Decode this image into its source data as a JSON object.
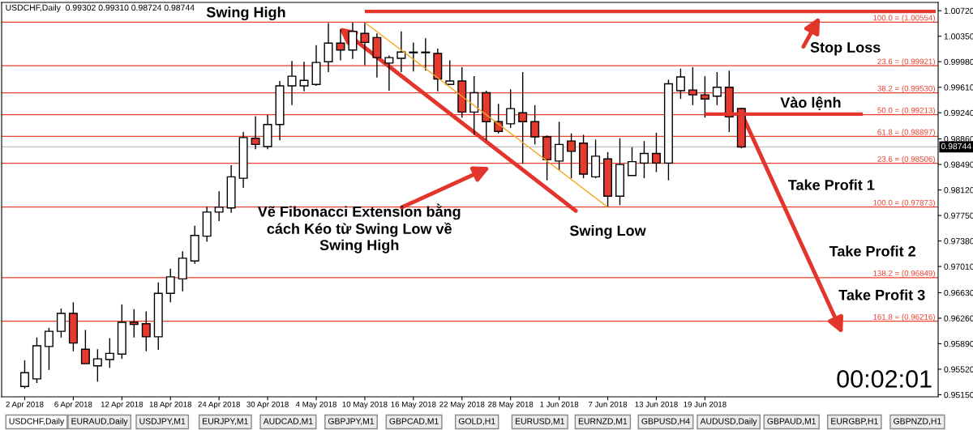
{
  "chart_data": {
    "type": "candlestick",
    "title": "USDCHF,Daily  0.99302 0.99310 0.98724 0.98744",
    "categories": [
      "2 Apr 2018",
      null,
      null,
      null,
      "6 Apr 2018",
      null,
      null,
      null,
      "12 Apr 2018",
      null,
      null,
      null,
      "18 Apr 2018",
      null,
      null,
      null,
      "24 Apr 2018",
      null,
      null,
      null,
      "30 Apr 2018",
      null,
      null,
      null,
      "4 May 2018",
      null,
      null,
      null,
      "10 May 2018",
      null,
      null,
      null,
      "16 May 2018",
      null,
      null,
      null,
      "22 May 2018",
      null,
      null,
      null,
      "28 May 2018",
      null,
      null,
      null,
      "1 Jun 2018",
      null,
      null,
      null,
      "7 Jun 2018",
      null,
      null,
      null,
      "13 Jun 2018",
      null,
      null,
      null,
      "19 Jun 2018",
      null,
      null,
      null,
      null,
      null,
      null,
      null,
      null,
      null,
      null,
      null,
      null,
      null,
      null,
      null,
      null,
      null,
      null,
      null
    ],
    "ohlc": [
      [
        0.9527,
        0.9565,
        0.9524,
        0.9547
      ],
      [
        0.9538,
        0.9598,
        0.9532,
        0.9586
      ],
      [
        0.9585,
        0.9612,
        0.9551,
        0.9607
      ],
      [
        0.9607,
        0.964,
        0.9598,
        0.9633
      ],
      [
        0.9633,
        0.9649,
        0.9578,
        0.959
      ],
      [
        0.9581,
        0.9609,
        0.956,
        0.956
      ],
      [
        0.9557,
        0.9581,
        0.9534,
        0.9567
      ],
      [
        0.9566,
        0.9597,
        0.9554,
        0.9575
      ],
      [
        0.9574,
        0.9646,
        0.9567,
        0.962
      ],
      [
        0.962,
        0.9639,
        0.9598,
        0.9617
      ],
      [
        0.9618,
        0.9636,
        0.9578,
        0.9599
      ],
      [
        0.9599,
        0.9678,
        0.958,
        0.9662
      ],
      [
        0.9662,
        0.9698,
        0.9649,
        0.9686
      ],
      [
        0.9683,
        0.9723,
        0.9665,
        0.9713
      ],
      [
        0.9709,
        0.976,
        0.9705,
        0.9746
      ],
      [
        0.9745,
        0.9788,
        0.9737,
        0.978
      ],
      [
        0.978,
        0.981,
        0.9767,
        0.9787
      ],
      [
        0.9786,
        0.9848,
        0.9779,
        0.9831
      ],
      [
        0.9829,
        0.9896,
        0.9815,
        0.9888
      ],
      [
        0.9887,
        0.9919,
        0.9871,
        0.9878
      ],
      [
        0.9875,
        0.9921,
        0.9871,
        0.9907
      ],
      [
        0.9907,
        0.997,
        0.9884,
        0.9963
      ],
      [
        0.9963,
        0.9999,
        0.9935,
        0.9977
      ],
      [
        0.9963,
        0.9998,
        0.9955,
        0.9971
      ],
      [
        0.9965,
        1.0022,
        0.9963,
        0.9997
      ],
      [
        0.9998,
        1.0054,
        0.9983,
        1.0025
      ],
      [
        1.0025,
        1.0045,
        1.0,
        1.0015
      ],
      [
        1.0015,
        1.0055,
        1.0002,
        1.0042
      ],
      [
        1.0039,
        1.0055,
        0.9993,
        1.0026
      ],
      [
        1.0033,
        1.0039,
        0.9975,
        1.0004
      ],
      [
        0.9996,
        1.0007,
        0.9956,
        1.0004
      ],
      [
        1.0003,
        1.0042,
        0.9983,
        1.0012
      ],
      [
        1.0011,
        1.0026,
        0.9984,
        1.0012
      ],
      [
        1.0011,
        1.0032,
        0.9985,
        1.0012
      ],
      [
        1.001,
        1.0017,
        0.9955,
        0.9973
      ],
      [
        0.9965,
        1.0,
        0.9965,
        0.997
      ],
      [
        0.997,
        0.999,
        0.9917,
        0.9925
      ],
      [
        0.9925,
        0.9977,
        0.9892,
        0.9953
      ],
      [
        0.9953,
        0.9956,
        0.9884,
        0.9911
      ],
      [
        0.9911,
        0.9937,
        0.9894,
        0.9897
      ],
      [
        0.9908,
        0.9958,
        0.9902,
        0.993
      ],
      [
        0.9924,
        0.9983,
        0.985,
        0.9911
      ],
      [
        0.9911,
        0.9935,
        0.9878,
        0.9889
      ],
      [
        0.9889,
        0.9891,
        0.9826,
        0.9856
      ],
      [
        0.9854,
        0.9911,
        0.9841,
        0.9878
      ],
      [
        0.9883,
        0.9894,
        0.9829,
        0.9868
      ],
      [
        0.988,
        0.9892,
        0.9829,
        0.9835
      ],
      [
        0.9831,
        0.9885,
        0.9829,
        0.9861
      ],
      [
        0.9857,
        0.9867,
        0.9787,
        0.9803
      ],
      [
        0.9803,
        0.9887,
        0.979,
        0.9849
      ],
      [
        0.9833,
        0.9874,
        0.9833,
        0.9853
      ],
      [
        0.9851,
        0.9883,
        0.9829,
        0.9865
      ],
      [
        0.9865,
        0.9895,
        0.9838,
        0.9851
      ],
      [
        0.9851,
        0.9972,
        0.9826,
        0.9966
      ],
      [
        0.9956,
        0.9988,
        0.9944,
        0.9976
      ],
      [
        0.9957,
        0.999,
        0.9935,
        0.995
      ],
      [
        0.995,
        0.9977,
        0.9917,
        0.9944
      ],
      [
        0.9948,
        0.9983,
        0.9935,
        0.9961
      ],
      [
        0.9961,
        0.9985,
        0.9896,
        0.9918
      ],
      [
        0.99302,
        0.9931,
        0.98724,
        0.98744
      ],
      null,
      null,
      null,
      null,
      null,
      null,
      null,
      null,
      null,
      null,
      null,
      null,
      null,
      null,
      null,
      null
    ],
    "colors": [
      "#ffffff",
      "#ffffff",
      "#ffffff",
      "#ffffff",
      "#e53a2f",
      "#e53a2f",
      "#ffffff",
      "#ffffff",
      "#ffffff",
      "#e53a2f",
      "#e53a2f",
      "#ffffff",
      "#ffffff",
      "#ffffff",
      "#ffffff",
      "#ffffff",
      "#ffffff",
      "#ffffff",
      "#ffffff",
      "#e53a2f",
      "#ffffff",
      "#ffffff",
      "#ffffff",
      "#ffffff",
      "#ffffff",
      "#ffffff",
      "#e53a2f",
      "#ffffff",
      "#e53a2f",
      "#e53a2f",
      "#ffffff",
      "#ffffff",
      "#ffffff",
      "#ffffff",
      "#e53a2f",
      "#ffffff",
      "#e53a2f",
      "#ffffff",
      "#e53a2f",
      "#e53a2f",
      "#ffffff",
      "#e53a2f",
      "#e53a2f",
      "#e53a2f",
      "#ffffff",
      "#e53a2f",
      "#e53a2f",
      "#ffffff",
      "#e53a2f",
      "#ffffff",
      "#ffffff",
      "#ffffff",
      "#e53a2f",
      "#ffffff",
      "#ffffff",
      "#e53a2f",
      "#e53a2f",
      "#ffffff",
      "#e53a2f",
      "#e53a2f",
      null,
      null,
      null,
      null,
      null,
      null,
      null,
      null,
      null,
      null,
      null,
      null,
      null,
      null,
      null,
      null
    ],
    "series": [
      {
        "type": "line",
        "color": "#f5a623",
        "values": [
          null,
          null,
          null,
          null,
          null,
          null,
          null,
          null,
          null,
          null,
          null,
          null,
          null,
          null,
          null,
          null,
          null,
          null,
          null,
          null,
          null,
          null,
          null,
          null,
          null,
          null,
          null,
          null,
          1.0055,
          null,
          null,
          null,
          null,
          null,
          null,
          null,
          null,
          null,
          null,
          null,
          null,
          null,
          null,
          null,
          null,
          null,
          null,
          null,
          0.9787,
          null,
          null,
          null,
          null,
          null,
          null,
          null,
          null,
          null,
          null,
          null,
          null,
          null,
          null,
          null,
          null,
          null,
          null,
          null,
          null,
          null,
          null,
          null,
          null,
          null,
          null,
          null
        ]
      },
      {
        "type": "line",
        "color": "#e3352b",
        "values": [
          null,
          null,
          null,
          null,
          null,
          null,
          null,
          null,
          null,
          null,
          null,
          null,
          null,
          null,
          null,
          null,
          null,
          null,
          null,
          null,
          null,
          null,
          null,
          null,
          null,
          null,
          null,
          null,
          1.0071,
          1.0071,
          1.0071,
          1.0071,
          1.0071,
          1.0071,
          1.0071,
          1.0071,
          1.0071,
          1.0071,
          1.0071,
          1.0071,
          1.0071,
          1.0071,
          1.0071,
          1.0071,
          1.0071,
          1.0071,
          1.0071,
          1.0071,
          1.0071,
          1.0071,
          1.0071,
          1.0071,
          1.0071,
          1.0071,
          1.0071,
          1.0071,
          1.0071,
          1.0071,
          1.0071,
          1.0071,
          1.0071,
          1.0071,
          1.0071,
          1.0071,
          1.0071,
          1.0071,
          1.0071,
          1.0071,
          1.0071,
          1.0071,
          1.0071,
          1.0071,
          1.0071,
          1.0071,
          1.0071,
          1.0071
        ]
      },
      {
        "type": "line",
        "color": "#e3352b",
        "values": [
          null,
          null,
          null,
          null,
          null,
          null,
          null,
          null,
          null,
          null,
          null,
          null,
          null,
          null,
          null,
          null,
          null,
          null,
          null,
          null,
          null,
          null,
          null,
          null,
          null,
          null,
          null,
          null,
          null,
          null,
          null,
          null,
          null,
          null,
          null,
          null,
          null,
          null,
          null,
          null,
          null,
          null,
          null,
          null,
          null,
          null,
          null,
          null,
          null,
          null,
          null,
          null,
          null,
          null,
          null,
          null,
          0.9922,
          0.9922,
          0.9922,
          0.9922,
          0.9922,
          0.9922,
          0.9922,
          0.9922,
          0.9922,
          0.9922,
          0.9922,
          0.9922,
          0.9922,
          0.9922,
          null,
          null,
          null,
          null,
          null,
          null
        ]
      }
    ],
    "ylim": [
      0.9512,
      1.0084
    ],
    "yticks": [
      {
        "value": 1.0072,
        "label": "1.00720"
      },
      {
        "value": 1.0035,
        "label": "1.00350"
      },
      {
        "value": 0.9998,
        "label": "0.99980"
      },
      {
        "value": 0.9961,
        "label": "0.99610"
      },
      {
        "value": 0.9924,
        "label": "0.99240"
      },
      {
        "value": 0.9886,
        "label": "0.98860"
      },
      {
        "value": 0.9849,
        "label": "0.98490"
      },
      {
        "value": 0.9812,
        "label": "0.98120"
      },
      {
        "value": 0.9775,
        "label": "0.97750"
      },
      {
        "value": 0.9738,
        "label": "0.97380"
      },
      {
        "value": 0.9701,
        "label": "0.97010"
      },
      {
        "value": 0.9663,
        "label": "0.96630"
      },
      {
        "value": 0.9626,
        "label": "0.96260"
      },
      {
        "value": 0.9589,
        "label": "0.95890"
      },
      {
        "value": 0.9552,
        "label": "0.95520"
      },
      {
        "value": 0.9515,
        "label": "0.95150"
      }
    ],
    "ref_lines": [
      {
        "axis": "y",
        "value": 1.00554,
        "label": "100.0 = (1.00554)",
        "color": "#e8412f"
      },
      {
        "axis": "y",
        "value": 0.99921,
        "label": "23.6 = (0.99921)",
        "color": "#e8412f"
      },
      {
        "axis": "y",
        "value": 0.9953,
        "label": "38.2 = (0.99530)",
        "color": "#e8412f"
      },
      {
        "axis": "y",
        "value": 0.99213,
        "label": "50.0 = (0.99213)",
        "color": "#e8412f"
      },
      {
        "axis": "y",
        "value": 0.98897,
        "label": "61.8 = (0.98897)",
        "color": "#e8412f"
      },
      {
        "axis": "y",
        "value": 0.98506,
        "label": "23.6 = (0.98506)",
        "color": "#e8412f"
      },
      {
        "axis": "y",
        "value": 0.97873,
        "label": "100.0 = (0.97873)",
        "color": "#e8412f"
      },
      {
        "axis": "y",
        "value": 0.96849,
        "label": "138.2 = (0.96849)",
        "color": "#e8412f"
      },
      {
        "axis": "y",
        "value": 0.96216,
        "label": "161.8 = (0.96216)",
        "color": "#e8412f"
      },
      {
        "axis": "y",
        "value": 0.98744,
        "label": "0.98744",
        "color": "#c0c0c0",
        "line_style": "solid"
      }
    ],
    "annotations": [
      "Swing High",
      "Vẽ Fibonacci Extension bằng\ncách Kéo từ Swing Low về\nSwing High",
      {
        "text": "Swing Low",
        "x": "7 Jun 2018",
        "y": 0.9787
      },
      "Stop Loss",
      "Vào lệnh",
      "Take Profit 1",
      "Take Profit 2",
      "Take Profit 3",
      "00:02:01",
      "USDCHF,Daily",
      "EURAUD,Daily",
      "USDJPY,M1",
      "EURJPY,M1",
      "AUDCAD,M1",
      "GBPJPY,M1",
      "GBPCAD,M1",
      "GOLD,H1",
      "EURUSD,M1",
      "EURNZD,M1",
      "GBPUSD,H4",
      "AUDUSD,Daily",
      "GBPAUD,M1",
      "EURGBP,H1",
      "GBPNZD,H1"
    ]
  }
}
